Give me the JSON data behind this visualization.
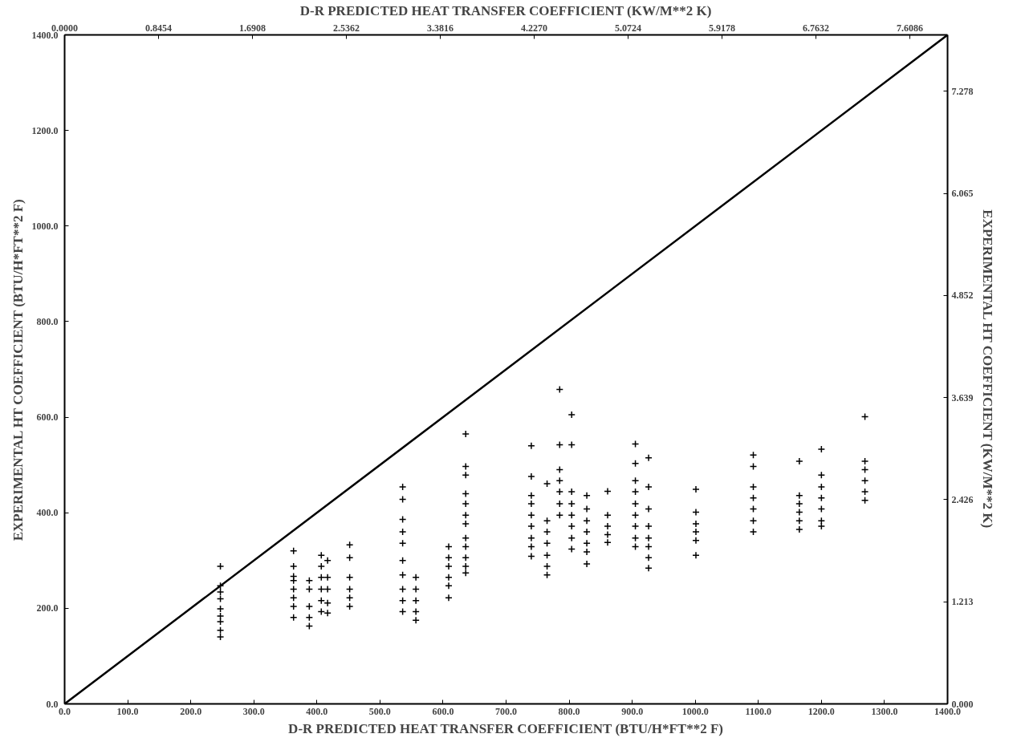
{
  "chart_data": {
    "type": "scatter",
    "xlabel": "D-R PREDICTED HEAT TRANSFER COEFFICIENT (BTU/H*FT**2 F)",
    "x2label": "D-R PREDICTED HEAT TRANSFER COEFFICIENT (KW/M**2 K)",
    "ylabel": "EXPERIMENTAL HT COEFFICIENT (BTU/H*FT**2 F)",
    "y2label": "EXPERIMENTAL HT COEFFICIENT (KW/M**2 K)",
    "xlim": [
      0,
      1400
    ],
    "xticks": [
      {
        "value": 0,
        "label": "0.0"
      },
      {
        "value": 100,
        "label": "100.0"
      },
      {
        "value": 200,
        "label": "200.0"
      },
      {
        "value": 300,
        "label": "300.0"
      },
      {
        "value": 400,
        "label": "400.0"
      },
      {
        "value": 500,
        "label": "500.0"
      },
      {
        "value": 600,
        "label": "600.0"
      },
      {
        "value": 700,
        "label": "700.0"
      },
      {
        "value": 800,
        "label": "800.0"
      },
      {
        "value": 900,
        "label": "900.0"
      },
      {
        "value": 1000,
        "label": "1000.0"
      },
      {
        "value": 1100,
        "label": "1100.0"
      },
      {
        "value": 1200,
        "label": "1200.0"
      },
      {
        "value": 1300,
        "label": "1300.0"
      },
      {
        "value": 1400,
        "label": "1400.0"
      }
    ],
    "ylim": [
      0,
      1400
    ],
    "yticks": [
      {
        "value": 0,
        "label": "0.0"
      },
      {
        "value": 200,
        "label": "200.0"
      },
      {
        "value": 400,
        "label": "400.0"
      },
      {
        "value": 600,
        "label": "600.0"
      },
      {
        "value": 800,
        "label": "800.0"
      },
      {
        "value": 1000,
        "label": "1000.0"
      },
      {
        "value": 1200,
        "label": "1200.0"
      },
      {
        "value": 1400,
        "label": "1400.0"
      }
    ],
    "x2lim": [
      0,
      7.949
    ],
    "x2ticks": [
      {
        "value": 0,
        "label": "0.0000"
      },
      {
        "value": 0.8454,
        "label": "0.8454"
      },
      {
        "value": 1.6908,
        "label": "1.6908"
      },
      {
        "value": 2.5362,
        "label": "2.5362"
      },
      {
        "value": 3.3816,
        "label": "3.3816"
      },
      {
        "value": 4.227,
        "label": "4.2270"
      },
      {
        "value": 5.0724,
        "label": "5.0724"
      },
      {
        "value": 5.9178,
        "label": "5.9178"
      },
      {
        "value": 6.7632,
        "label": "6.7632"
      },
      {
        "value": 7.6086,
        "label": "7.6086"
      }
    ],
    "y2lim": [
      0,
      7.949
    ],
    "y2ticks": [
      {
        "value": 0,
        "label": "0.000"
      },
      {
        "value": 1.213,
        "label": "1.213"
      },
      {
        "value": 2.426,
        "label": "2.426"
      },
      {
        "value": 3.639,
        "label": "3.639"
      },
      {
        "value": 4.852,
        "label": "4.852"
      },
      {
        "value": 6.065,
        "label": "6.065"
      },
      {
        "value": 7.278,
        "label": "7.278"
      }
    ],
    "series": [
      {
        "type": "line",
        "color": "#000000",
        "x": [
          0,
          350,
          700,
          1050,
          1400
        ],
        "values": [
          0,
          350,
          700,
          1050,
          1400
        ]
      },
      {
        "marker": "cross",
        "color": "#000000",
        "x": [
          247,
          247,
          247,
          247,
          247,
          247,
          247,
          247,
          247,
          363,
          363,
          363,
          363,
          363,
          363,
          363,
          363,
          388,
          388,
          388,
          388,
          388,
          407,
          407,
          407,
          407,
          407,
          407,
          417,
          417,
          417,
          417,
          417,
          452,
          452,
          452,
          452,
          452,
          452,
          536,
          536,
          536,
          536,
          536,
          536,
          536,
          536,
          536,
          536,
          557,
          557,
          557,
          557,
          557,
          609,
          609,
          609,
          609,
          609,
          609,
          636,
          636,
          636,
          636,
          636,
          636,
          636,
          636,
          636,
          636,
          636,
          636,
          740,
          740,
          740,
          740,
          740,
          740,
          740,
          740,
          740,
          765,
          765,
          765,
          765,
          765,
          765,
          765,
          785,
          785,
          785,
          785,
          785,
          785,
          785,
          804,
          804,
          804,
          804,
          804,
          804,
          804,
          804,
          828,
          828,
          828,
          828,
          828,
          828,
          828,
          861,
          861,
          861,
          861,
          861,
          905,
          905,
          905,
          905,
          905,
          905,
          905,
          905,
          905,
          926,
          926,
          926,
          926,
          926,
          926,
          926,
          926,
          1001,
          1001,
          1001,
          1001,
          1001,
          1001,
          1092,
          1092,
          1092,
          1092,
          1092,
          1092,
          1092,
          1165,
          1165,
          1165,
          1165,
          1165,
          1165,
          1200,
          1200,
          1200,
          1200,
          1200,
          1200,
          1200,
          1269,
          1269,
          1269,
          1269,
          1269,
          1269
        ],
        "values": [
          288,
          247,
          234,
          220,
          199,
          184,
          172,
          154,
          140,
          320,
          288,
          267,
          258,
          240,
          222,
          204,
          181,
          258,
          240,
          204,
          181,
          163,
          311,
          288,
          265,
          240,
          216,
          193,
          300,
          265,
          240,
          211,
          190,
          333,
          306,
          265,
          240,
          222,
          204,
          454,
          428,
          386,
          360,
          336,
          300,
          270,
          240,
          216,
          193,
          265,
          240,
          216,
          193,
          175,
          329,
          306,
          288,
          265,
          247,
          222,
          565,
          497,
          479,
          440,
          419,
          395,
          377,
          347,
          329,
          306,
          288,
          274,
          540,
          476,
          436,
          419,
          395,
          372,
          347,
          329,
          309,
          461,
          383,
          360,
          336,
          311,
          288,
          270,
          658,
          542,
          490,
          467,
          444,
          419,
          395,
          605,
          542,
          444,
          419,
          395,
          372,
          347,
          324,
          436,
          408,
          383,
          360,
          336,
          318,
          293,
          445,
          395,
          372,
          354,
          338,
          544,
          503,
          467,
          444,
          419,
          395,
          372,
          347,
          329,
          515,
          454,
          408,
          372,
          347,
          329,
          306,
          284,
          449,
          401,
          377,
          360,
          342,
          311,
          521,
          497,
          454,
          431,
          408,
          383,
          360,
          508,
          436,
          419,
          401,
          383,
          365,
          533,
          479,
          454,
          431,
          408,
          383,
          372,
          601,
          508,
          490,
          467,
          444,
          426
        ]
      }
    ]
  }
}
